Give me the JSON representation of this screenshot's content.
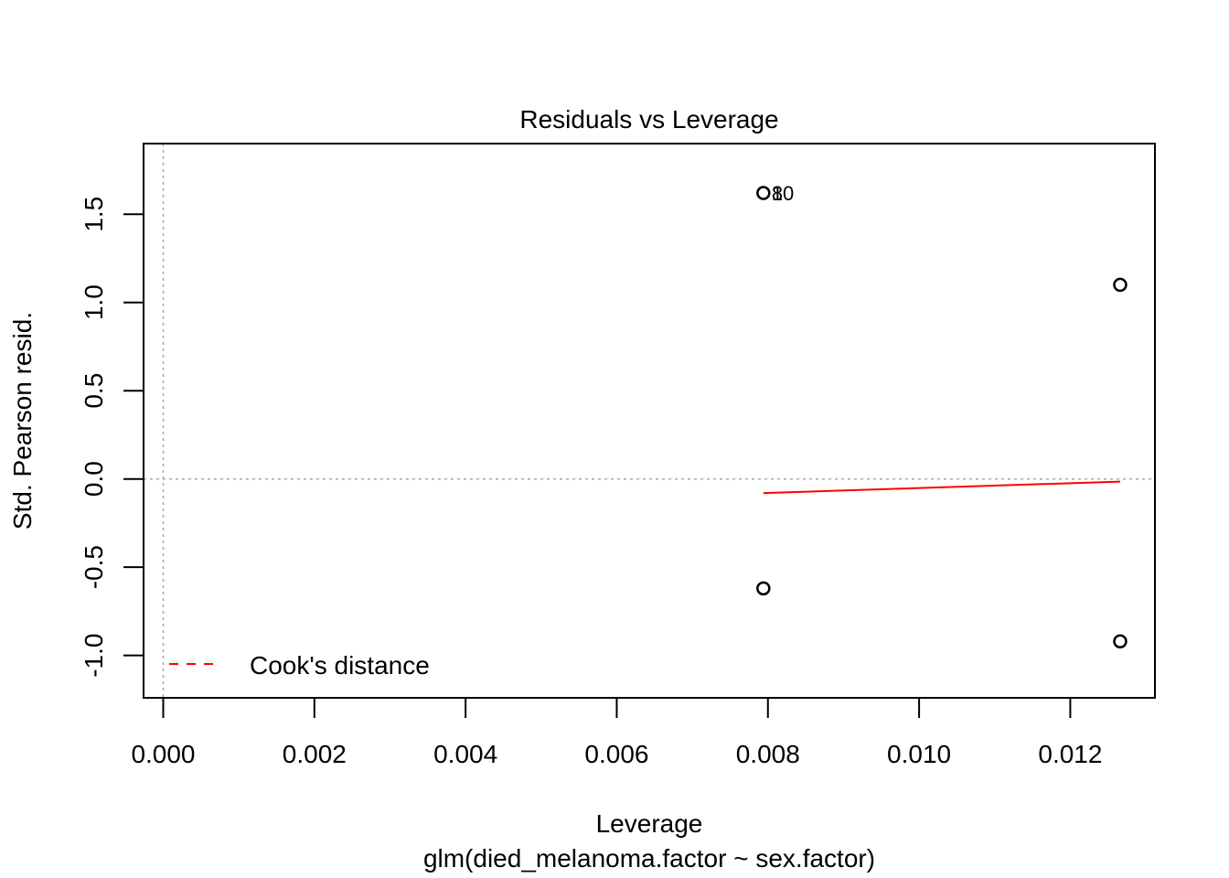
{
  "chart_data": {
    "type": "scatter",
    "title": "Residuals vs Leverage",
    "xlabel": "Leverage",
    "subtitle": "glm(died_melanoma.factor ~ sex.factor)",
    "ylabel": "Std. Pearson resid.",
    "xlim": [
      -0.00026,
      0.01312
    ],
    "ylim": [
      -1.24,
      1.9
    ],
    "x_ticks": [
      0.0,
      0.002,
      0.004,
      0.006,
      0.008,
      0.01,
      0.012
    ],
    "x_tick_labels": [
      "0.000",
      "0.002",
      "0.004",
      "0.006",
      "0.008",
      "0.010",
      "0.012"
    ],
    "y_ticks": [
      -1.0,
      -0.5,
      0.0,
      0.5,
      1.0,
      1.5
    ],
    "y_tick_labels": [
      "-1.0",
      "-0.5",
      "0.0",
      "0.5",
      "1.0",
      "1.5"
    ],
    "points": [
      {
        "x": 0.00794,
        "y": 1.62
      },
      {
        "x": 0.00794,
        "y": -0.62
      },
      {
        "x": 0.01266,
        "y": 1.1
      },
      {
        "x": 0.01266,
        "y": -0.92
      }
    ],
    "point_labels": [
      {
        "x": 0.00794,
        "y": 1.62,
        "text": "8"
      },
      {
        "x": 0.00794,
        "y": 1.62,
        "text": "10"
      }
    ],
    "smooth_line": {
      "x": [
        0.00794,
        0.01266
      ],
      "y": [
        -0.08,
        -0.015
      ],
      "color": "#ff0000"
    },
    "reference_lines": {
      "h": 0,
      "v": 0
    },
    "legend": {
      "position": "bottom-left",
      "label": "Cook's distance",
      "color": "#ff0000",
      "style": "dashed"
    },
    "grid": false
  }
}
